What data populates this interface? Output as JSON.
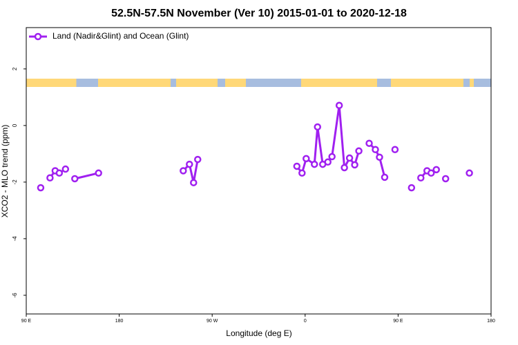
{
  "chart_data": {
    "type": "line",
    "title": "52.5N-57.5N November (Ver 10)   2015-01-01 to 2020-12-18",
    "x_label": "Longitude (deg E)",
    "y_label": "XCO2 - MLO trend (ppm)",
    "xlim": [
      90,
      540
    ],
    "ylim": [
      -6.66,
      3.46
    ],
    "xticks": [
      {
        "value": 90,
        "label": "90 E"
      },
      {
        "value": 180,
        "label": "180"
      },
      {
        "value": 270,
        "label": "90 W"
      },
      {
        "value": 360,
        "label": "0"
      },
      {
        "value": 450,
        "label": "90 E"
      },
      {
        "value": 540,
        "label": "180"
      }
    ],
    "yticks": [
      -6,
      -4,
      -2,
      0,
      2
    ],
    "legend": "top-left",
    "x": [
      104,
      108,
      113,
      118,
      122,
      128,
      132,
      137,
      160,
      200,
      242,
      248,
      252,
      256,
      300,
      352,
      357,
      361,
      369,
      372,
      377,
      382,
      386,
      393,
      398,
      403,
      408,
      412,
      417,
      422,
      428,
      432,
      437,
      442,
      447,
      455,
      463,
      468,
      472,
      478,
      482,
      487,
      492,
      496,
      508,
      519
    ],
    "series": [
      {
        "name": "Land (Nadir&Glint) and Ocean (Glint)",
        "color": "#a020f0",
        "values": [
          -2.2,
          null,
          -1.85,
          -1.6,
          -1.68,
          -1.54,
          null,
          -1.88,
          -1.68,
          null,
          -1.6,
          -1.37,
          -2.02,
          -1.2,
          null,
          -1.44,
          -1.68,
          -1.17,
          -1.37,
          -0.05,
          -1.37,
          -1.29,
          -1.1,
          0.71,
          -1.49,
          -1.15,
          -1.39,
          -0.9,
          null,
          -0.63,
          -0.85,
          -1.12,
          -1.83,
          null,
          -0.85,
          null,
          -2.2,
          null,
          -1.85,
          -1.6,
          -1.68,
          -1.56,
          null,
          -1.88,
          null,
          -1.68
        ]
      }
    ]
  }
}
